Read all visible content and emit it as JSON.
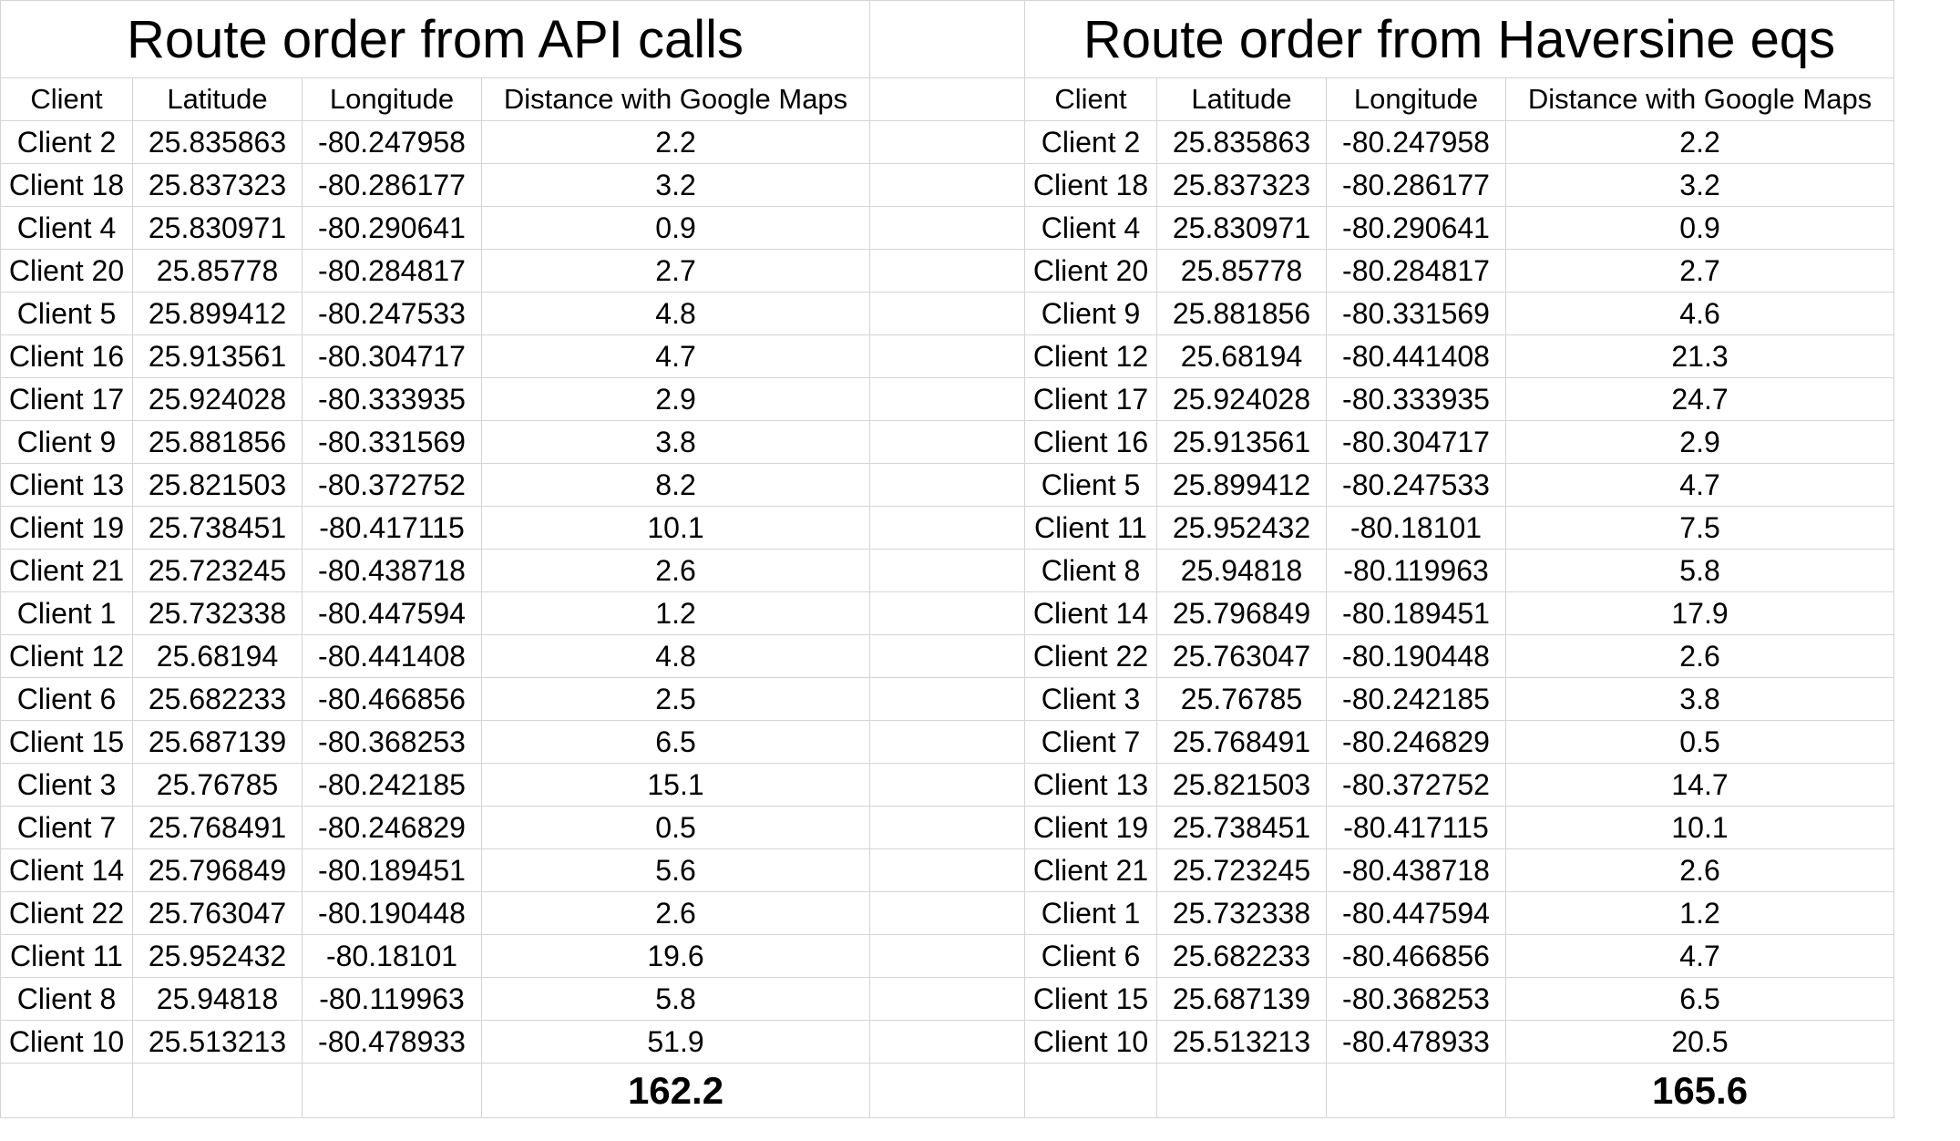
{
  "left": {
    "title": "Route order from API calls",
    "headers": [
      "Client",
      "Latitude",
      "Longitude",
      "Distance with Google Maps"
    ],
    "rows": [
      [
        "Client 2",
        "25.835863",
        "-80.247958",
        "2.2"
      ],
      [
        "Client 18",
        "25.837323",
        "-80.286177",
        "3.2"
      ],
      [
        "Client 4",
        "25.830971",
        "-80.290641",
        "0.9"
      ],
      [
        "Client 20",
        "25.85778",
        "-80.284817",
        "2.7"
      ],
      [
        "Client 5",
        "25.899412",
        "-80.247533",
        "4.8"
      ],
      [
        "Client 16",
        "25.913561",
        "-80.304717",
        "4.7"
      ],
      [
        "Client 17",
        "25.924028",
        "-80.333935",
        "2.9"
      ],
      [
        "Client 9",
        "25.881856",
        "-80.331569",
        "3.8"
      ],
      [
        "Client 13",
        "25.821503",
        "-80.372752",
        "8.2"
      ],
      [
        "Client 19",
        "25.738451",
        "-80.417115",
        "10.1"
      ],
      [
        "Client 21",
        "25.723245",
        "-80.438718",
        "2.6"
      ],
      [
        "Client 1",
        "25.732338",
        "-80.447594",
        "1.2"
      ],
      [
        "Client 12",
        "25.68194",
        "-80.441408",
        "4.8"
      ],
      [
        "Client 6",
        "25.682233",
        "-80.466856",
        "2.5"
      ],
      [
        "Client 15",
        "25.687139",
        "-80.368253",
        "6.5"
      ],
      [
        "Client 3",
        "25.76785",
        "-80.242185",
        "15.1"
      ],
      [
        "Client 7",
        "25.768491",
        "-80.246829",
        "0.5"
      ],
      [
        "Client 14",
        "25.796849",
        "-80.189451",
        "5.6"
      ],
      [
        "Client 22",
        "25.763047",
        "-80.190448",
        "2.6"
      ],
      [
        "Client 11",
        "25.952432",
        "-80.18101",
        "19.6"
      ],
      [
        "Client 8",
        "25.94818",
        "-80.119963",
        "5.8"
      ],
      [
        "Client 10",
        "25.513213",
        "-80.478933",
        "51.9"
      ]
    ],
    "total": "162.2"
  },
  "right": {
    "title": "Route order from Haversine eqs",
    "headers": [
      "Client",
      "Latitude",
      "Longitude",
      "Distance with Google Maps"
    ],
    "rows": [
      [
        "Client 2",
        "25.835863",
        "-80.247958",
        "2.2"
      ],
      [
        "Client 18",
        "25.837323",
        "-80.286177",
        "3.2"
      ],
      [
        "Client 4",
        "25.830971",
        "-80.290641",
        "0.9"
      ],
      [
        "Client 20",
        "25.85778",
        "-80.284817",
        "2.7"
      ],
      [
        "Client 9",
        "25.881856",
        "-80.331569",
        "4.6"
      ],
      [
        "Client 12",
        "25.68194",
        "-80.441408",
        "21.3"
      ],
      [
        "Client 17",
        "25.924028",
        "-80.333935",
        "24.7"
      ],
      [
        "Client 16",
        "25.913561",
        "-80.304717",
        "2.9"
      ],
      [
        "Client 5",
        "25.899412",
        "-80.247533",
        "4.7"
      ],
      [
        "Client 11",
        "25.952432",
        "-80.18101",
        "7.5"
      ],
      [
        "Client 8",
        "25.94818",
        "-80.119963",
        "5.8"
      ],
      [
        "Client 14",
        "25.796849",
        "-80.189451",
        "17.9"
      ],
      [
        "Client 22",
        "25.763047",
        "-80.190448",
        "2.6"
      ],
      [
        "Client 3",
        "25.76785",
        "-80.242185",
        "3.8"
      ],
      [
        "Client 7",
        "25.768491",
        "-80.246829",
        "0.5"
      ],
      [
        "Client 13",
        "25.821503",
        "-80.372752",
        "14.7"
      ],
      [
        "Client 19",
        "25.738451",
        "-80.417115",
        "10.1"
      ],
      [
        "Client 21",
        "25.723245",
        "-80.438718",
        "2.6"
      ],
      [
        "Client 1",
        "25.732338",
        "-80.447594",
        "1.2"
      ],
      [
        "Client 6",
        "25.682233",
        "-80.466856",
        "4.7"
      ],
      [
        "Client 15",
        "25.687139",
        "-80.368253",
        "6.5"
      ],
      [
        "Client 10",
        "25.513213",
        "-80.478933",
        "20.5"
      ]
    ],
    "total": "165.6"
  }
}
